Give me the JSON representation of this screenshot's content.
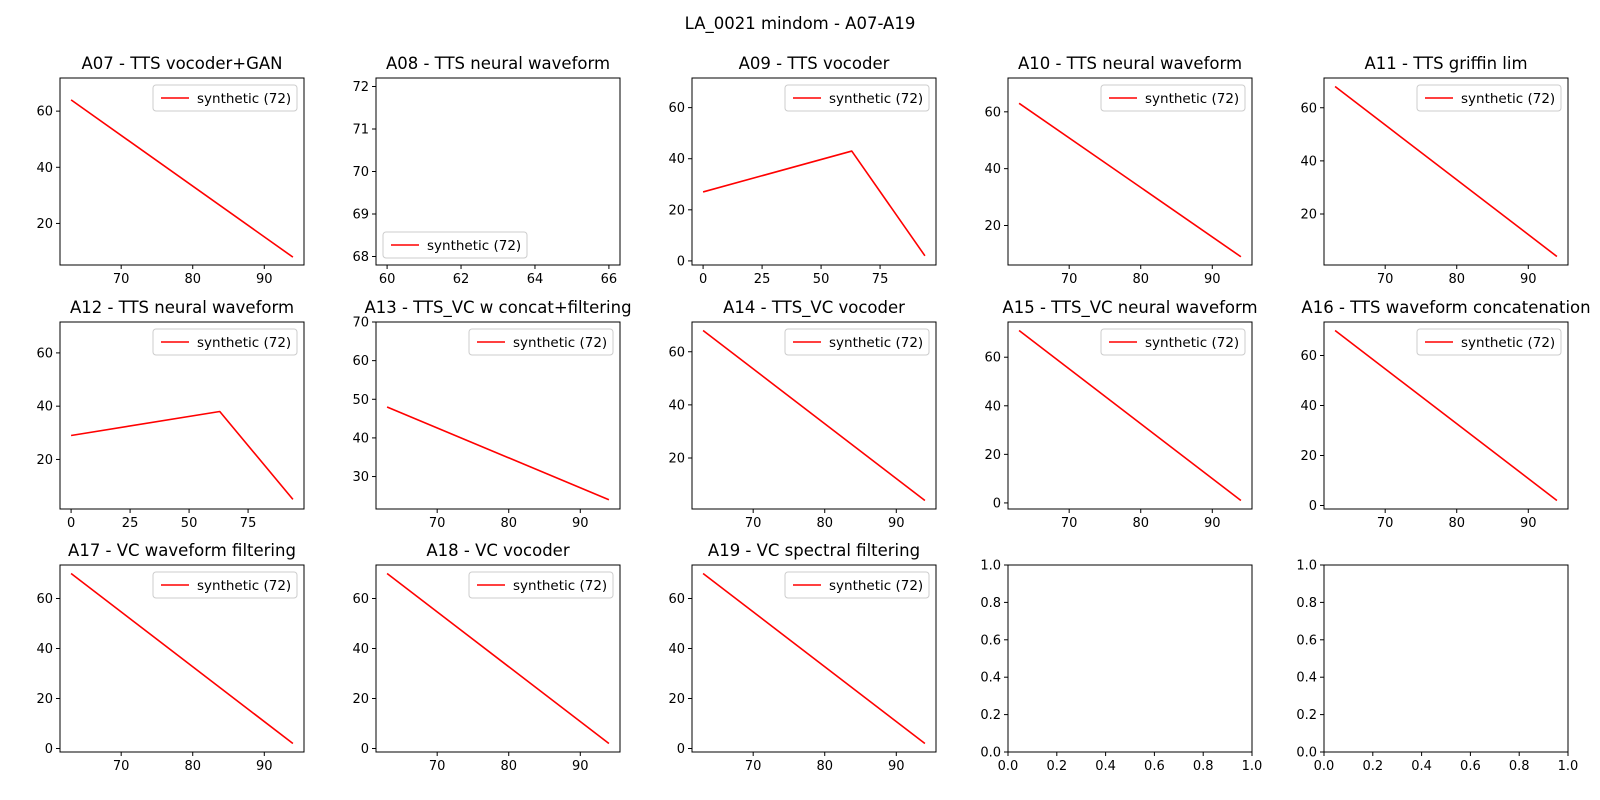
{
  "figure": {
    "suptitle": "LA_0021 mindom - A07-A19",
    "line_color": "#ff0000"
  },
  "chart_data": [
    {
      "type": "line",
      "title": "A07 - TTS vocoder+GAN",
      "xlim": [
        61.45,
        95.55
      ],
      "ylim": [
        5.2,
        71.8
      ],
      "xticks": [
        70,
        80,
        90
      ],
      "yticks": [
        20,
        40,
        60
      ],
      "legend_loc": "upper right",
      "series": [
        {
          "name": "synthetic (72)",
          "x": [
            63,
            94
          ],
          "y": [
            64,
            8
          ]
        }
      ]
    },
    {
      "type": "line",
      "title": "A08 - TTS neural waveform",
      "xlim": [
        59.7,
        66.3
      ],
      "ylim": [
        67.8,
        72.2
      ],
      "xticks": [
        60,
        62,
        64,
        66
      ],
      "yticks": [
        68,
        69,
        70,
        71,
        72
      ],
      "legend_loc": "lower left",
      "series": [
        {
          "name": "synthetic (72)",
          "x": [],
          "y": []
        }
      ]
    },
    {
      "type": "line",
      "title": "A09 - TTS vocoder",
      "xlim": [
        -4.7,
        98.7
      ],
      "ylim": [
        -1.6,
        71.6
      ],
      "xticks": [
        0,
        25,
        50,
        75
      ],
      "yticks": [
        0,
        20,
        40,
        60
      ],
      "legend_loc": "upper right",
      "series": [
        {
          "name": "synthetic (72)",
          "x": [
            0,
            63,
            94
          ],
          "y": [
            27,
            43,
            2
          ]
        }
      ]
    },
    {
      "type": "line",
      "title": "A10 - TTS neural waveform",
      "xlim": [
        61.45,
        95.55
      ],
      "ylim": [
        6.1,
        71.9
      ],
      "xticks": [
        70,
        80,
        90
      ],
      "yticks": [
        20,
        40,
        60
      ],
      "legend_loc": "upper right",
      "series": [
        {
          "name": "synthetic (72)",
          "x": [
            63,
            94
          ],
          "y": [
            63,
            9
          ]
        }
      ]
    },
    {
      "type": "line",
      "title": "A11 - TTS griffin lim",
      "xlim": [
        61.45,
        95.55
      ],
      "ylim": [
        0.8,
        71.2
      ],
      "xticks": [
        70,
        80,
        90
      ],
      "yticks": [
        20,
        40,
        60
      ],
      "legend_loc": "upper right",
      "series": [
        {
          "name": "synthetic (72)",
          "x": [
            63,
            94
          ],
          "y": [
            68,
            4
          ]
        }
      ]
    },
    {
      "type": "line",
      "title": "A12 - TTS neural waveform",
      "xlim": [
        -4.7,
        98.7
      ],
      "ylim": [
        1.4,
        71.6
      ],
      "xticks": [
        0,
        25,
        50,
        75
      ],
      "yticks": [
        20,
        40,
        60
      ],
      "legend_loc": "upper right",
      "series": [
        {
          "name": "synthetic (72)",
          "x": [
            0,
            63,
            94
          ],
          "y": [
            29,
            38,
            5
          ]
        }
      ]
    },
    {
      "type": "line",
      "title": "A13 - TTS_VC w concat+filtering",
      "xlim": [
        61.45,
        95.55
      ],
      "ylim": [
        21.6,
        70.0
      ],
      "xticks": [
        70,
        80,
        90
      ],
      "yticks": [
        30,
        40,
        50,
        60,
        70
      ],
      "legend_loc": "upper right",
      "series": [
        {
          "name": "synthetic (72)",
          "x": [
            63,
            94
          ],
          "y": [
            48,
            24
          ]
        }
      ]
    },
    {
      "type": "line",
      "title": "A14 - TTS_VC vocoder",
      "xlim": [
        61.45,
        95.55
      ],
      "ylim": [
        0.8,
        71.2
      ],
      "xticks": [
        70,
        80,
        90
      ],
      "yticks": [
        20,
        40,
        60
      ],
      "legend_loc": "upper right",
      "series": [
        {
          "name": "synthetic (72)",
          "x": [
            63,
            94
          ],
          "y": [
            68,
            4
          ]
        }
      ]
    },
    {
      "type": "line",
      "title": "A15 - TTS_VC neural waveform",
      "xlim": [
        61.45,
        95.55
      ],
      "ylim": [
        -2.5,
        74.5
      ],
      "xticks": [
        70,
        80,
        90
      ],
      "yticks": [
        0,
        20,
        40,
        60
      ],
      "legend_loc": "upper right",
      "series": [
        {
          "name": "synthetic (72)",
          "x": [
            63,
            94
          ],
          "y": [
            71,
            1
          ]
        }
      ]
    },
    {
      "type": "line",
      "title": "A16 - TTS waveform concatenation",
      "xlim": [
        61.45,
        95.55
      ],
      "ylim": [
        -1.4,
        73.4
      ],
      "xticks": [
        70,
        80,
        90
      ],
      "yticks": [
        0,
        20,
        40,
        60
      ],
      "legend_loc": "upper right",
      "series": [
        {
          "name": "synthetic (72)",
          "x": [
            63,
            94
          ],
          "y": [
            70,
            2
          ]
        }
      ]
    },
    {
      "type": "line",
      "title": "A17 - VC waveform filtering",
      "xlim": [
        61.45,
        95.55
      ],
      "ylim": [
        -1.4,
        73.4
      ],
      "xticks": [
        70,
        80,
        90
      ],
      "yticks": [
        0,
        20,
        40,
        60
      ],
      "legend_loc": "upper right",
      "series": [
        {
          "name": "synthetic (72)",
          "x": [
            63,
            94
          ],
          "y": [
            70,
            2
          ]
        }
      ]
    },
    {
      "type": "line",
      "title": "A18 - VC vocoder",
      "xlim": [
        61.45,
        95.55
      ],
      "ylim": [
        -1.4,
        73.4
      ],
      "xticks": [
        70,
        80,
        90
      ],
      "yticks": [
        0,
        20,
        40,
        60
      ],
      "legend_loc": "upper right",
      "series": [
        {
          "name": "synthetic (72)",
          "x": [
            63,
            94
          ],
          "y": [
            70,
            2
          ]
        }
      ]
    },
    {
      "type": "line",
      "title": "A19 - VC spectral filtering",
      "xlim": [
        61.45,
        95.55
      ],
      "ylim": [
        -1.4,
        73.4
      ],
      "xticks": [
        70,
        80,
        90
      ],
      "yticks": [
        0,
        20,
        40,
        60
      ],
      "legend_loc": "upper right",
      "series": [
        {
          "name": "synthetic (72)",
          "x": [
            63,
            94
          ],
          "y": [
            70,
            2
          ]
        }
      ]
    },
    {
      "type": "line",
      "title": "",
      "xlim": [
        0,
        1
      ],
      "ylim": [
        0,
        1
      ],
      "xticks": [
        0.0,
        0.2,
        0.4,
        0.6,
        0.8,
        1.0
      ],
      "yticks": [
        0.0,
        0.2,
        0.4,
        0.6,
        0.8,
        1.0
      ],
      "tick_decimals": 1,
      "legend_loc": "none",
      "series": []
    },
    {
      "type": "line",
      "title": "",
      "xlim": [
        0,
        1
      ],
      "ylim": [
        0,
        1
      ],
      "xticks": [
        0.0,
        0.2,
        0.4,
        0.6,
        0.8,
        1.0
      ],
      "yticks": [
        0.0,
        0.2,
        0.4,
        0.6,
        0.8,
        1.0
      ],
      "tick_decimals": 1,
      "legend_loc": "none",
      "series": []
    }
  ]
}
